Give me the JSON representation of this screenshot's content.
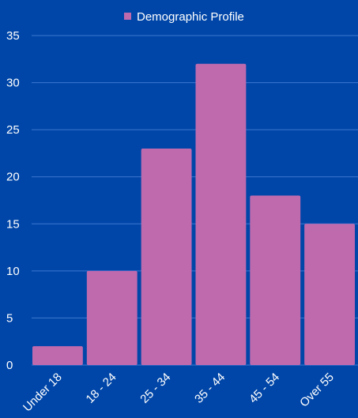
{
  "chart_data": {
    "type": "bar",
    "categories": [
      "Under 18",
      "18 - 24",
      "25 - 34",
      "35 - 44",
      "45 - 54",
      "Over 55"
    ],
    "series": [
      {
        "name": "Demographic Profile",
        "values": [
          2,
          10,
          23,
          32,
          18,
          15
        ]
      }
    ],
    "ylim": [
      0,
      35
    ],
    "yticks": [
      0,
      5,
      10,
      15,
      20,
      25,
      30,
      35
    ],
    "grid": true,
    "legend_position": "top",
    "colors": {
      "background": "#0046A8",
      "bar": "#C06AAE",
      "grid": "#3D78D0",
      "text": "#FFFFFF"
    }
  }
}
